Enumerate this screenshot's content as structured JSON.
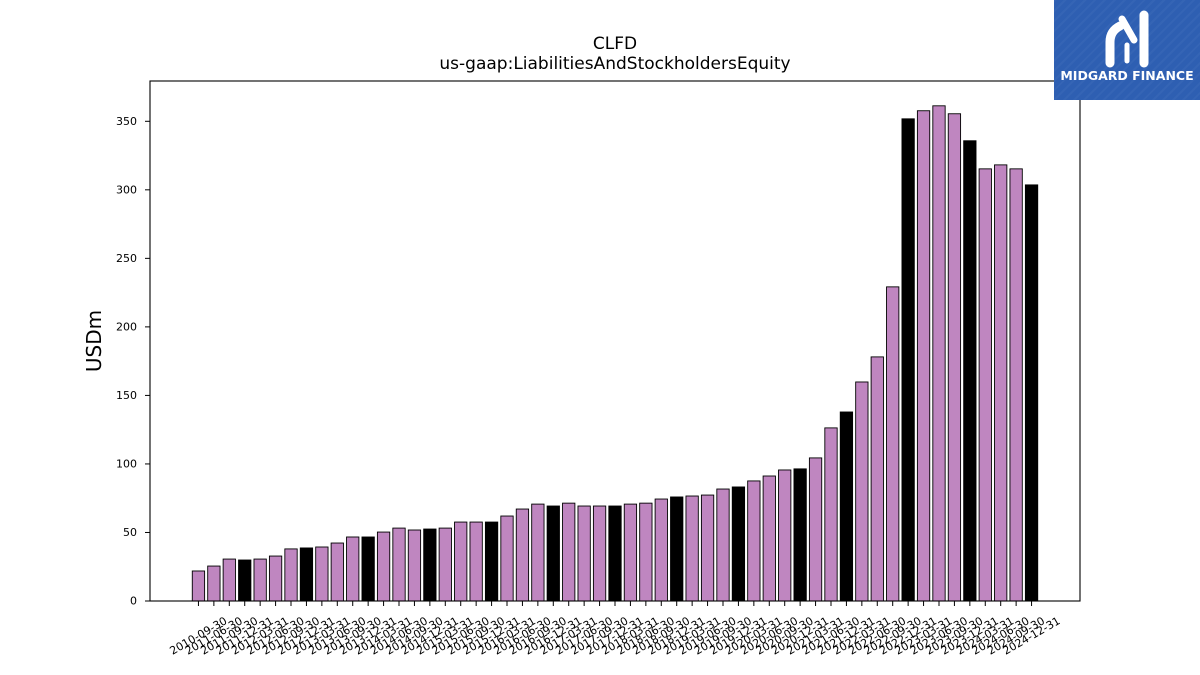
{
  "logo": {
    "text": "MIDGARD FINANCE",
    "background": "#2e5fb2",
    "icon": "midgard-logo-icon"
  },
  "chart_data": {
    "type": "bar",
    "title": "CLFD",
    "subtitle": "us-gaap:LiabilitiesAndStockholdersEquity",
    "ylabel": "USDm",
    "ylim": [
      0,
      379.4
    ],
    "yticks": [
      0,
      50,
      100,
      150,
      200,
      250,
      300,
      350
    ],
    "grid": false,
    "colors": {
      "bar": "#bf86c0",
      "highlight": "#000000",
      "edge": "#000000"
    },
    "categories": [
      "2010-09-30",
      "2011-06-30",
      "2011-09-30",
      "2011-12-31",
      "2012-03-31",
      "2012-06-30",
      "2012-09-30",
      "2012-12-31",
      "2013-03-31",
      "2013-06-30",
      "2013-09-30",
      "2013-12-31",
      "2014-03-31",
      "2014-06-30",
      "2014-09-30",
      "2014-12-31",
      "2015-03-31",
      "2015-06-30",
      "2015-09-30",
      "2015-12-31",
      "2016-03-31",
      "2016-06-30",
      "2016-09-30",
      "2016-12-31",
      "2017-03-31",
      "2017-06-30",
      "2017-09-30",
      "2017-12-31",
      "2018-03-31",
      "2018-06-30",
      "2018-09-30",
      "2018-12-31",
      "2019-03-31",
      "2019-06-30",
      "2019-09-30",
      "2019-12-31",
      "2020-03-31",
      "2020-06-30",
      "2020-09-30",
      "2020-12-31",
      "2021-03-31",
      "2021-06-30",
      "2021-12-31",
      "2022-03-31",
      "2022-06-30",
      "2022-09-30",
      "2022-12-31",
      "2023-03-31",
      "2023-06-30",
      "2023-09-30",
      "2023-12-31",
      "2024-03-31",
      "2024-06-30",
      "2024-09-30",
      "2024-12-31"
    ],
    "values": [
      21.9,
      25.5,
      30.6,
      29.9,
      30.6,
      32.8,
      38.0,
      38.7,
      39.4,
      42.3,
      46.7,
      46.7,
      50.3,
      53.2,
      51.8,
      52.5,
      53.2,
      57.6,
      57.6,
      57.6,
      62.0,
      67.1,
      70.7,
      69.3,
      71.4,
      69.3,
      69.3,
      69.3,
      70.7,
      71.4,
      74.4,
      75.9,
      76.6,
      77.3,
      81.7,
      83.2,
      87.6,
      91.2,
      95.6,
      96.4,
      104.4,
      126.3,
      137.9,
      159.8,
      178.1,
      229.2,
      351.8,
      357.7,
      361.3,
      355.5,
      335.8,
      315.3,
      318.2,
      315.3,
      303.6
    ],
    "highlight": [
      false,
      false,
      false,
      true,
      false,
      false,
      false,
      true,
      false,
      false,
      false,
      true,
      false,
      false,
      false,
      true,
      false,
      false,
      false,
      true,
      false,
      false,
      false,
      true,
      false,
      false,
      false,
      true,
      false,
      false,
      false,
      true,
      false,
      false,
      false,
      true,
      false,
      false,
      false,
      true,
      false,
      false,
      true,
      false,
      false,
      false,
      true,
      false,
      false,
      false,
      true,
      false,
      false,
      false,
      true
    ]
  }
}
